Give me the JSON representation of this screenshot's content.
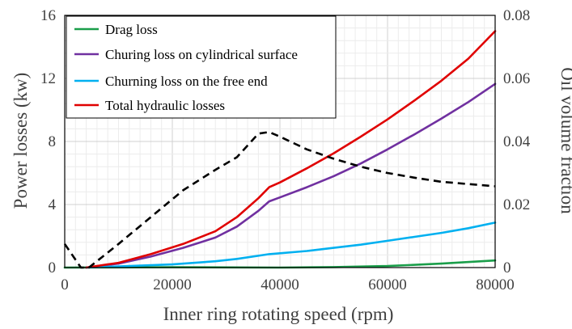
{
  "chart_data": {
    "type": "line",
    "xlabel": "Inner ring rotating speed (rpm)",
    "ylabel": "Power losses (kw)",
    "y2label": "Oil volume fraction",
    "xlim": [
      0,
      80000
    ],
    "ylim": [
      0,
      16
    ],
    "y2lim": [
      0,
      0.08
    ],
    "x_ticks": [
      "0",
      "20000",
      "40000",
      "60000",
      "80000"
    ],
    "y_ticks": [
      "0",
      "4",
      "8",
      "12",
      "16"
    ],
    "y2_ticks": [
      "0",
      "0.02",
      "0.04",
      "0.06",
      "0.08"
    ],
    "grid": true,
    "legend_position": "top-left",
    "series": [
      {
        "name": "Drag loss",
        "axis": "left",
        "color": "#1a9e4a",
        "style": "solid",
        "points": [
          [
            0,
            0
          ],
          [
            20000,
            0.02
          ],
          [
            40000,
            0
          ],
          [
            50000,
            0.03
          ],
          [
            60000,
            0.1
          ],
          [
            70000,
            0.25
          ],
          [
            80000,
            0.45
          ]
        ]
      },
      {
        "name": "Churing loss on cylindrical surface",
        "axis": "left",
        "color": "#7030a0",
        "style": "solid",
        "points": [
          [
            4000,
            0
          ],
          [
            10000,
            0.25
          ],
          [
            16000,
            0.7
          ],
          [
            22000,
            1.25
          ],
          [
            28000,
            1.9
          ],
          [
            32000,
            2.6
          ],
          [
            36000,
            3.6
          ],
          [
            38000,
            4.2
          ],
          [
            40000,
            4.45
          ],
          [
            45000,
            5.1
          ],
          [
            50000,
            5.8
          ],
          [
            55000,
            6.6
          ],
          [
            60000,
            7.5
          ],
          [
            65000,
            8.45
          ],
          [
            70000,
            9.45
          ],
          [
            75000,
            10.5
          ],
          [
            80000,
            11.65
          ]
        ]
      },
      {
        "name": "Churning loss on the free end",
        "axis": "left",
        "color": "#00b0f0",
        "style": "solid",
        "points": [
          [
            4000,
            0
          ],
          [
            20000,
            0.2
          ],
          [
            28000,
            0.4
          ],
          [
            32000,
            0.55
          ],
          [
            38000,
            0.85
          ],
          [
            45000,
            1.05
          ],
          [
            50000,
            1.25
          ],
          [
            55000,
            1.45
          ],
          [
            60000,
            1.7
          ],
          [
            65000,
            1.95
          ],
          [
            70000,
            2.2
          ],
          [
            75000,
            2.5
          ],
          [
            80000,
            2.85
          ]
        ]
      },
      {
        "name": "Total hydraulic losses",
        "axis": "left",
        "color": "#e00000",
        "style": "solid",
        "points": [
          [
            4000,
            0
          ],
          [
            10000,
            0.3
          ],
          [
            16000,
            0.85
          ],
          [
            22000,
            1.5
          ],
          [
            28000,
            2.3
          ],
          [
            32000,
            3.2
          ],
          [
            36000,
            4.4
          ],
          [
            38000,
            5.1
          ],
          [
            40000,
            5.4
          ],
          [
            45000,
            6.3
          ],
          [
            50000,
            7.25
          ],
          [
            55000,
            8.3
          ],
          [
            60000,
            9.4
          ],
          [
            65000,
            10.6
          ],
          [
            70000,
            11.85
          ],
          [
            75000,
            13.25
          ],
          [
            80000,
            15
          ]
        ]
      },
      {
        "name": "",
        "axis": "right",
        "color": "#000000",
        "style": "dashed",
        "points": [
          [
            0,
            0.0075
          ],
          [
            3000,
            0
          ],
          [
            4500,
            0
          ],
          [
            10000,
            0.0075
          ],
          [
            16000,
            0.016
          ],
          [
            22000,
            0.0245
          ],
          [
            28000,
            0.031
          ],
          [
            32000,
            0.035
          ],
          [
            36000,
            0.0425
          ],
          [
            38000,
            0.043
          ],
          [
            40000,
            0.0415
          ],
          [
            45000,
            0.0375
          ],
          [
            50000,
            0.0345
          ],
          [
            55000,
            0.032
          ],
          [
            60000,
            0.03
          ],
          [
            65000,
            0.0285
          ],
          [
            70000,
            0.0272
          ],
          [
            75000,
            0.0265
          ],
          [
            80000,
            0.0258
          ]
        ]
      }
    ]
  }
}
